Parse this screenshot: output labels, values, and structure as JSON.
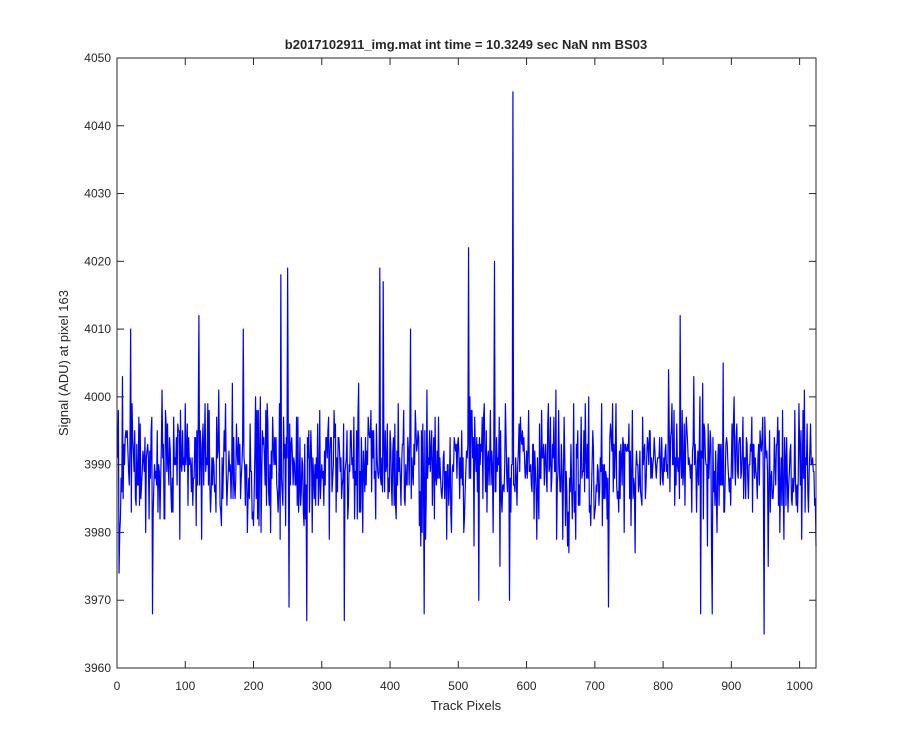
{
  "chart_data": {
    "type": "line",
    "title": "b2017102911_img.mat int time = 10.3249 sec  NaN nm BS03",
    "xlabel": "Track Pixels",
    "ylabel": "Signal (ADU) at pixel 163",
    "xlim": [
      0,
      1024
    ],
    "ylim": [
      3960,
      4050
    ],
    "xticks": [
      "0",
      "100",
      "200",
      "300",
      "400",
      "500",
      "600",
      "700",
      "800",
      "900",
      "1000"
    ],
    "yticks": [
      "3960",
      "3970",
      "3980",
      "3990",
      "4000",
      "4010",
      "4020",
      "4030",
      "4040",
      "4050"
    ],
    "grid": false,
    "legend": "none",
    "colors": {
      "line": "#0000ff",
      "axes": "#262626",
      "background": "#ffffff"
    },
    "series": [
      {
        "x_start": 1,
        "x_step": 1,
        "y_mean": 3990,
        "values_note": "",
        "notable_points": [
          {
            "x": 3,
            "y": 3974
          },
          {
            "x": 8,
            "y": 4003
          },
          {
            "x": 20,
            "y": 4010
          },
          {
            "x": 52,
            "y": 3968
          },
          {
            "x": 120,
            "y": 4012
          },
          {
            "x": 185,
            "y": 4010
          },
          {
            "x": 240,
            "y": 4018
          },
          {
            "x": 250,
            "y": 4019
          },
          {
            "x": 252,
            "y": 3969
          },
          {
            "x": 278,
            "y": 3967
          },
          {
            "x": 333,
            "y": 3967
          },
          {
            "x": 385,
            "y": 4019
          },
          {
            "x": 390,
            "y": 4017
          },
          {
            "x": 430,
            "y": 4010
          },
          {
            "x": 450,
            "y": 3968
          },
          {
            "x": 515,
            "y": 4022
          },
          {
            "x": 530,
            "y": 3970
          },
          {
            "x": 553,
            "y": 4020
          },
          {
            "x": 575,
            "y": 3970
          },
          {
            "x": 580,
            "y": 4045
          },
          {
            "x": 720,
            "y": 3969
          },
          {
            "x": 825,
            "y": 4012
          },
          {
            "x": 855,
            "y": 3968
          },
          {
            "x": 872,
            "y": 3968
          },
          {
            "x": 948,
            "y": 3965
          },
          {
            "x": 1024,
            "y": 3978
          }
        ]
      }
    ]
  }
}
